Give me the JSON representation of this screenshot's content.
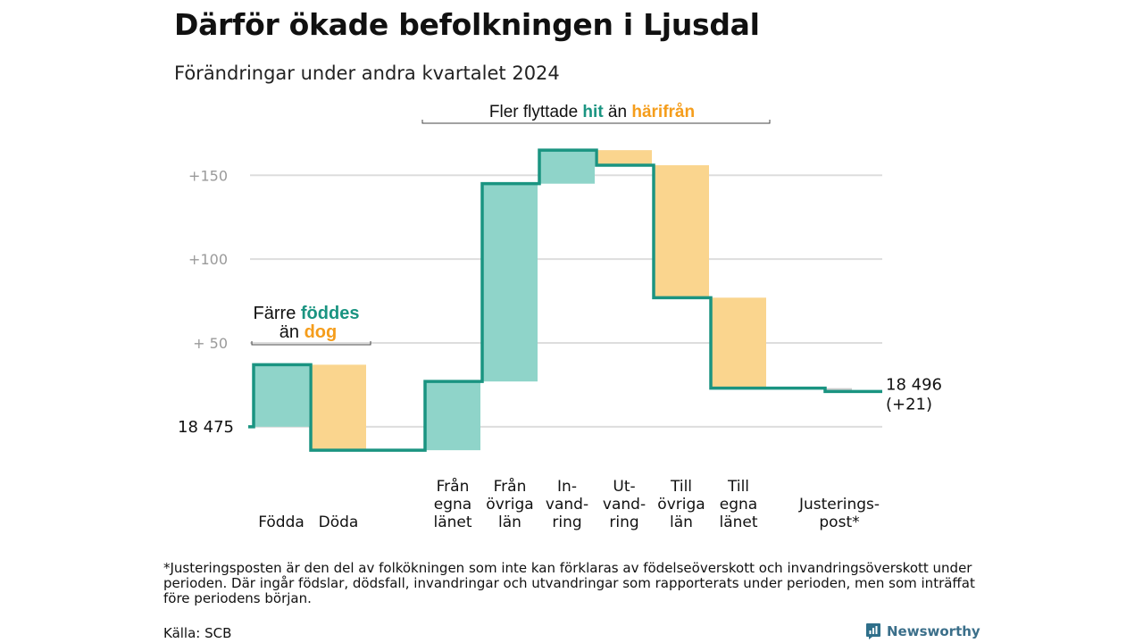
{
  "title": "Därför ökade befolkningen i Ljusdal",
  "subtitle": "Förändringar under andra kvartalet 2024",
  "chart_data": {
    "type": "waterfall",
    "start": {
      "label": "18  475",
      "value": 0
    },
    "end": {
      "label_line1": "18 496",
      "label_line2": "(+21)",
      "value": 21
    },
    "ylim": [
      -15,
      172
    ],
    "yticks": [
      {
        "value": 150,
        "label": "+150"
      },
      {
        "value": 100,
        "label": "+100"
      },
      {
        "value": 50,
        "label": "+  50"
      },
      {
        "value": 0,
        "label": ""
      }
    ],
    "grid": true,
    "steps": [
      {
        "lines": [
          "Födda"
        ],
        "delta": 37,
        "kind": "gain"
      },
      {
        "lines": [
          "Döda"
        ],
        "delta": -51,
        "kind": "loss"
      },
      {
        "lines": [],
        "delta": 0,
        "kind": "none"
      },
      {
        "lines": [
          "Från",
          "egna",
          "länet"
        ],
        "delta": 41,
        "kind": "gain"
      },
      {
        "lines": [
          "Från",
          "övriga",
          "län"
        ],
        "delta": 118,
        "kind": "gain"
      },
      {
        "lines": [
          "In-",
          "vand-",
          "ring"
        ],
        "delta": 20,
        "kind": "gain"
      },
      {
        "lines": [
          "Ut-",
          "vand-",
          "ring"
        ],
        "delta": -9,
        "kind": "loss"
      },
      {
        "lines": [
          "Till",
          "övriga",
          "län"
        ],
        "delta": -79,
        "kind": "loss"
      },
      {
        "lines": [
          "Till",
          "egna",
          "länet"
        ],
        "delta": -54,
        "kind": "loss"
      },
      {
        "lines": [],
        "delta": 0,
        "kind": "none"
      },
      {
        "lines": [
          "Justerings-",
          "post*"
        ],
        "delta": -2,
        "kind": "loss"
      }
    ],
    "colors": {
      "gain": "#8fd4c9",
      "loss": "#fad58e",
      "adjustment": "#cccccc",
      "line": "#1a9481",
      "grid": "#dddddd",
      "accent_green": "#1a9481",
      "accent_orange": "#f59d1b"
    },
    "annotations": {
      "births": {
        "part1": "Färre",
        "highlight1": "föddes",
        "part2": "än",
        "highlight2": "dog"
      },
      "migration": {
        "part1": "Fler flyttade",
        "highlight1": "hit",
        "part2": "än",
        "highlight2": "härifrån"
      }
    }
  },
  "footnote": "*Justeringsposten är den del av folkökningen som inte kan förklaras av födelseöverskott och invandringsöverskott under perioden. Där ingår födslar, dödsfall, invandringar och utvandringar som rapporterats under perioden, men som inträffat före periodens början.",
  "source": "Källa: SCB",
  "brand": {
    "name": "Newsworthy",
    "icon": "newsworthy-logo-icon"
  }
}
